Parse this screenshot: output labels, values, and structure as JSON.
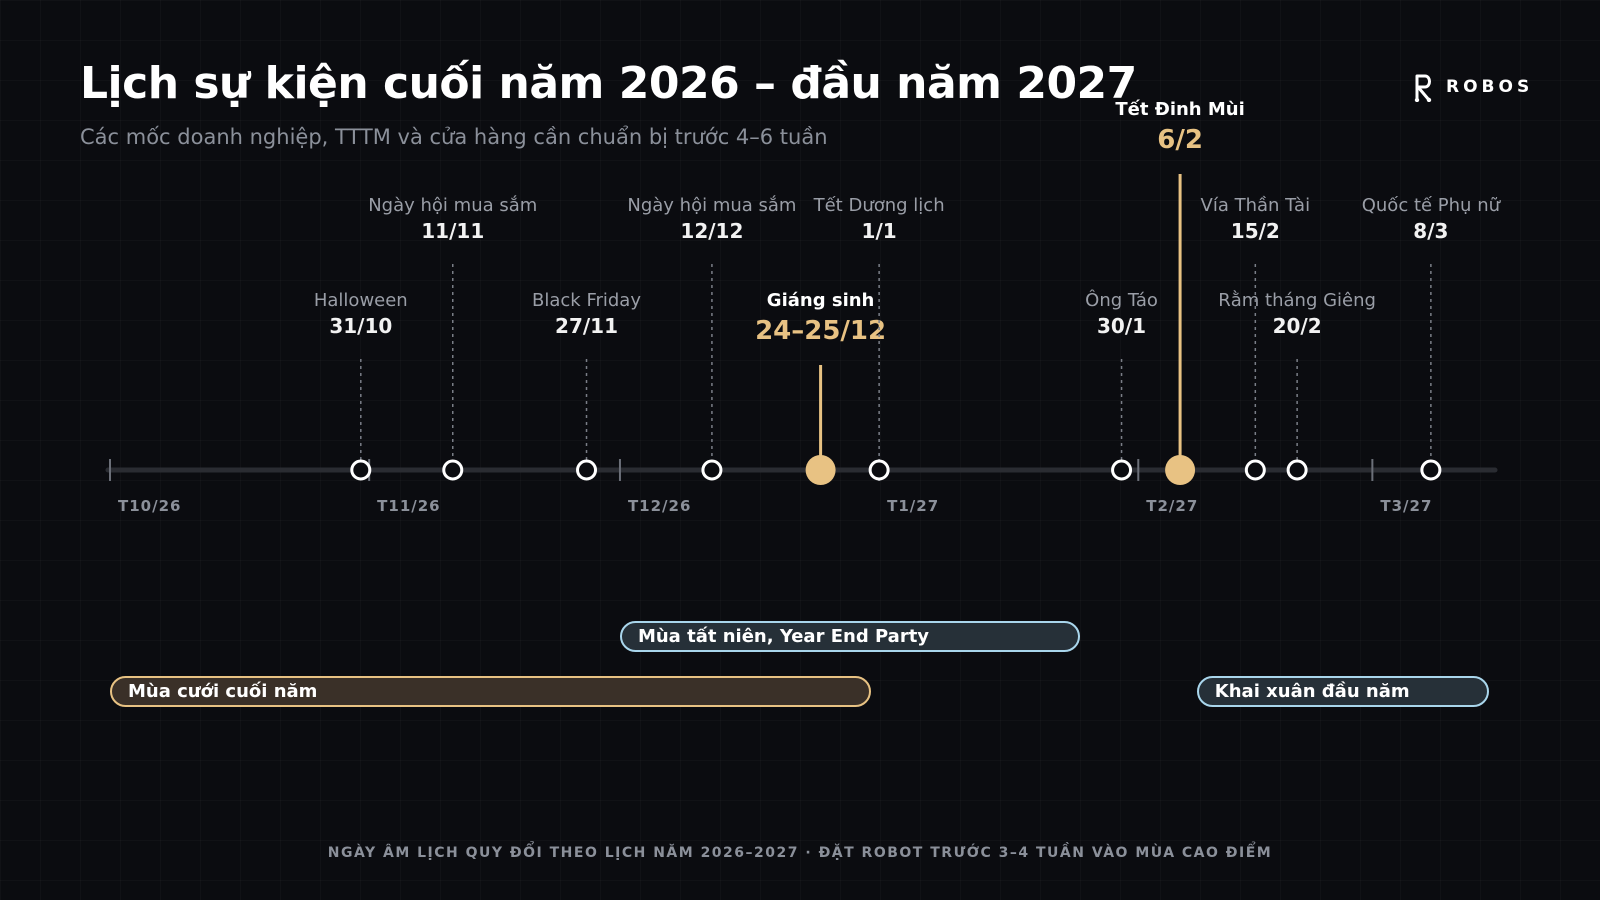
{
  "header": {
    "title": "Lịch sự kiện cuối năm 2026 – đầu năm 2027",
    "subtitle": "Các mốc doanh nghiệp, TTTM và cửa hàng cần chuẩn bị trước 4–6 tuần"
  },
  "logo": {
    "text": "ROBOS",
    "icon": "robot-r-icon"
  },
  "chart_data": {
    "type": "timeline",
    "months": [
      {
        "label": "T10/26",
        "start": "2026-10-01"
      },
      {
        "label": "T11/26",
        "start": "2026-11-01"
      },
      {
        "label": "T12/26",
        "start": "2026-12-01"
      },
      {
        "label": "T1/27",
        "start": "2027-01-01"
      },
      {
        "label": "T2/27",
        "start": "2027-02-01"
      },
      {
        "label": "T3/27",
        "start": "2027-03-01"
      }
    ],
    "events": [
      {
        "name": "Halloween",
        "date_label": "31/10",
        "date": "2026-10-31",
        "tier": "low",
        "highlight": false
      },
      {
        "name": "Ngày hội mua sắm",
        "date_label": "11/11",
        "date": "2026-11-11",
        "tier": "high",
        "highlight": false
      },
      {
        "name": "Black Friday",
        "date_label": "27/11",
        "date": "2026-11-27",
        "tier": "low",
        "highlight": false
      },
      {
        "name": "Ngày hội mua sắm",
        "date_label": "12/12",
        "date": "2026-12-12",
        "tier": "high",
        "highlight": false
      },
      {
        "name": "Giáng sinh",
        "date_label": "24–25/12",
        "date": "2026-12-25",
        "tier": "low",
        "highlight": true
      },
      {
        "name": "Tết Dương lịch",
        "date_label": "1/1",
        "date": "2027-01-01",
        "tier": "high",
        "highlight": false
      },
      {
        "name": "Ông Táo",
        "date_label": "30/1",
        "date": "2027-01-30",
        "tier": "low",
        "highlight": false
      },
      {
        "name": "Tết Đinh Mùi",
        "date_label": "6/2",
        "date": "2027-02-06",
        "tier": "top",
        "highlight": true
      },
      {
        "name": "Vía Thần Tài",
        "date_label": "15/2",
        "date": "2027-02-15",
        "tier": "high",
        "highlight": false
      },
      {
        "name": "Rằm tháng Giêng",
        "date_label": "20/2",
        "date": "2027-02-20",
        "tier": "low",
        "highlight": false
      },
      {
        "name": "Quốc tế Phụ nữ",
        "date_label": "8/3",
        "date": "2027-03-08",
        "tier": "high",
        "highlight": false
      }
    ],
    "periods": [
      {
        "name": "Mùa tất niên, Year End Party",
        "start": "2026-12-01",
        "end": "2027-01-25",
        "style": "blue"
      },
      {
        "name": "Mùa cưới cuối năm",
        "start": "2026-10-01",
        "end": "2026-12-31",
        "style": "gold"
      },
      {
        "name": "Khai xuân đầu năm",
        "start": "2027-02-08",
        "end": "2027-03-15",
        "style": "blue"
      }
    ],
    "colors": {
      "accent": "#e8c283",
      "blue": "#a9d6ec",
      "axis": "#2a2c32"
    }
  },
  "footnote": "NGÀY ÂM LỊCH QUY ĐỔI THEO LỊCH NĂM 2026–2027 · ĐẶT ROBOT TRƯỚC 3–4 TUẦN VÀO MÙA CAO ĐIỂM"
}
